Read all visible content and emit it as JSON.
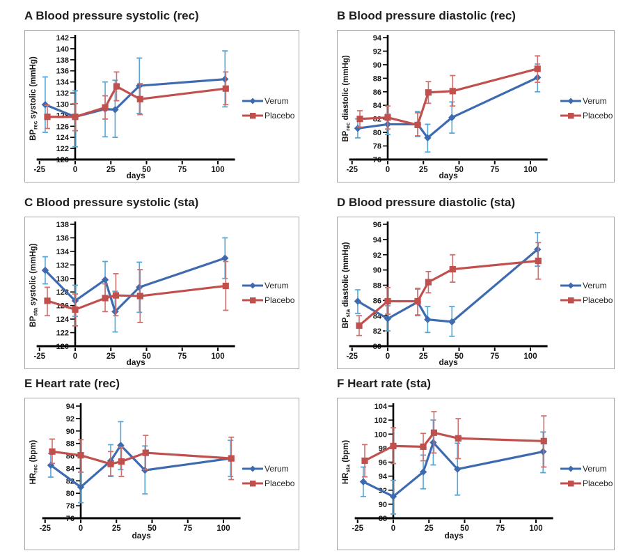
{
  "figure": {
    "legend_labels": [
      "Verum",
      "Placebo"
    ],
    "legend_position": "right"
  },
  "colors": {
    "verum_line": "#3e6bb0",
    "verum_err": "#56a7d8",
    "placebo_line": "#c0504d",
    "placebo_err": "#d0706c",
    "axis": "#000000",
    "text": "#171717",
    "legend_text": "#262626",
    "frame_border": "#a6a6a6"
  },
  "chart_data": [
    {
      "panel": "A",
      "type": "line",
      "title": "A Blood pressure systolic (rec)",
      "xlabel": "days",
      "ylabel": {
        "prefix": "BP",
        "sub": "rec",
        "suffix": " systolic (mmHg)"
      },
      "ylim": [
        120,
        142
      ],
      "ytick_step": 2,
      "xticks": [
        -25,
        0,
        25,
        50,
        75,
        100
      ],
      "grid": false,
      "series": [
        {
          "name": "Verum",
          "role": "verum",
          "marker": "diamond",
          "x": [
            -21,
            0,
            21,
            28,
            45,
            105
          ],
          "y": [
            129.9,
            127.7,
            129.1,
            129.0,
            133.3,
            134.5
          ],
          "err_lo": [
            124.9,
            122.3,
            124.1,
            124.0,
            128.3,
            129.5
          ],
          "err_hi": [
            134.9,
            132.4,
            134.0,
            134.3,
            138.3,
            139.6
          ]
        },
        {
          "name": "Placebo",
          "role": "placebo",
          "marker": "square",
          "x": [
            -19.5,
            0,
            21,
            29,
            45.5,
            105.5
          ],
          "y": [
            127.7,
            127.7,
            129.4,
            133.2,
            130.9,
            132.8
          ],
          "err_lo": [
            125.6,
            125.2,
            127.3,
            130.6,
            128.1,
            129.9
          ],
          "err_hi": [
            129.8,
            130.1,
            131.5,
            135.8,
            133.7,
            135.8
          ]
        }
      ]
    },
    {
      "panel": "B",
      "type": "line",
      "title": "B Blood pressure diastolic (rec)",
      "xlabel": "days",
      "ylabel": {
        "prefix": "BP",
        "sub": "rec",
        "suffix": " diastolic (mmHg)"
      },
      "ylim": [
        76,
        94
      ],
      "ytick_step": 2,
      "xticks": [
        -25,
        0,
        25,
        50,
        75,
        100
      ],
      "grid": false,
      "series": [
        {
          "name": "Verum",
          "role": "verum",
          "marker": "diamond",
          "x": [
            -21,
            0,
            21,
            28,
            45,
            105
          ],
          "y": [
            80.6,
            81.2,
            81.2,
            79.2,
            82.2,
            88.1
          ],
          "err_lo": [
            79.2,
            79.7,
            79.4,
            77.1,
            79.9,
            86.0
          ],
          "err_hi": [
            82.0,
            82.7,
            83.1,
            81.2,
            84.5,
            90.1
          ]
        },
        {
          "name": "Placebo",
          "role": "placebo",
          "marker": "square",
          "x": [
            -19.5,
            0,
            21,
            28.5,
            45.5,
            105
          ],
          "y": [
            82.0,
            82.2,
            81.1,
            85.9,
            86.1,
            89.4
          ],
          "err_lo": [
            80.8,
            80.5,
            79.5,
            84.3,
            83.9,
            87.4
          ],
          "err_hi": [
            83.2,
            83.9,
            82.9,
            87.5,
            88.4,
            91.3
          ]
        }
      ]
    },
    {
      "panel": "C",
      "type": "line",
      "title": "C Blood pressure systolic (sta)",
      "xlabel": "days",
      "ylabel": {
        "prefix": "BP",
        "sub": "sta",
        "suffix": " systolic (mmHg)"
      },
      "ylim": [
        120,
        138
      ],
      "ytick_step": 2,
      "xticks": [
        -25,
        0,
        25,
        50,
        75,
        100
      ],
      "grid": false,
      "series": [
        {
          "name": "Verum",
          "role": "verum",
          "marker": "diamond",
          "x": [
            -21,
            0,
            21,
            28,
            45,
            105
          ],
          "y": [
            131.2,
            126.7,
            129.8,
            125.1,
            128.7,
            133.0
          ],
          "err_lo": [
            129.2,
            124.4,
            127.2,
            122.1,
            125.0,
            130.0
          ],
          "err_hi": [
            133.2,
            129.0,
            132.5,
            128.1,
            132.4,
            136.0
          ]
        },
        {
          "name": "Placebo",
          "role": "placebo",
          "marker": "square",
          "x": [
            -19.5,
            0,
            21,
            28.5,
            45.5,
            105.5
          ],
          "y": [
            126.7,
            125.4,
            127.1,
            127.5,
            127.4,
            128.9
          ],
          "err_lo": [
            124.5,
            123.0,
            125.1,
            124.5,
            123.5,
            125.3
          ],
          "err_hi": [
            128.7,
            127.7,
            129.2,
            130.7,
            131.3,
            132.5
          ]
        }
      ]
    },
    {
      "panel": "D",
      "type": "line",
      "title": "D Blood pressure diastolic (sta)",
      "xlabel": "days",
      "ylabel": {
        "prefix": "BP",
        "sub": "sta",
        "suffix": " diastolic (mmHg)"
      },
      "ylim": [
        80,
        96
      ],
      "ytick_step": 2,
      "xticks": [
        -25,
        0,
        25,
        50,
        75,
        100
      ],
      "grid": false,
      "series": [
        {
          "name": "Verum",
          "role": "verum",
          "marker": "diamond",
          "x": [
            -21,
            0,
            21,
            28,
            45,
            105
          ],
          "y": [
            85.9,
            83.6,
            85.8,
            83.5,
            83.2,
            92.7
          ],
          "err_lo": [
            84.3,
            82.0,
            84.0,
            81.8,
            81.3,
            90.5
          ],
          "err_hi": [
            87.4,
            85.3,
            87.6,
            85.2,
            85.2,
            94.9
          ]
        },
        {
          "name": "Placebo",
          "role": "placebo",
          "marker": "square",
          "x": [
            -20,
            0,
            21,
            28.5,
            45.5,
            105.5
          ],
          "y": [
            82.7,
            85.9,
            85.9,
            88.4,
            90.1,
            91.2
          ],
          "err_lo": [
            81.4,
            84.2,
            84.1,
            87.0,
            88.4,
            88.8
          ],
          "err_hi": [
            84.0,
            87.7,
            87.5,
            89.8,
            92.0,
            93.6
          ]
        }
      ]
    },
    {
      "panel": "E",
      "type": "line",
      "title": "E Heart rate (rec)",
      "xlabel": "days",
      "ylabel": {
        "prefix": "HR",
        "sub": "rec",
        "suffix": " (bpm)"
      },
      "ylim": [
        76,
        94
      ],
      "ytick_step": 2,
      "xticks": [
        -25,
        0,
        25,
        50,
        75,
        100
      ],
      "grid": false,
      "series": [
        {
          "name": "Verum",
          "role": "verum",
          "marker": "diamond",
          "x": [
            -21,
            0,
            21,
            28,
            45,
            105
          ],
          "y": [
            84.5,
            81.0,
            85.2,
            87.7,
            83.7,
            85.6
          ],
          "err_lo": [
            82.6,
            78.5,
            82.7,
            83.8,
            79.9,
            82.7
          ],
          "err_hi": [
            86.4,
            83.4,
            87.8,
            91.5,
            87.6,
            88.5
          ]
        },
        {
          "name": "Placebo",
          "role": "placebo",
          "marker": "square",
          "x": [
            -20,
            0,
            21,
            28.5,
            45.5,
            105.5
          ],
          "y": [
            86.7,
            86.1,
            84.7,
            85.1,
            86.5,
            85.6
          ],
          "err_lo": [
            84.8,
            83.4,
            82.8,
            82.7,
            83.8,
            82.2
          ],
          "err_hi": [
            88.7,
            88.6,
            86.7,
            87.4,
            89.3,
            89.0
          ]
        }
      ]
    },
    {
      "panel": "F",
      "type": "line",
      "title": "F Heart rate (sta)",
      "xlabel": "days",
      "ylabel": {
        "prefix": "HR",
        "sub": "sta",
        "suffix": " (bpm)"
      },
      "ylim": [
        88,
        104
      ],
      "ytick_step": 2,
      "xticks": [
        -25,
        0,
        25,
        50,
        75,
        100
      ],
      "grid": false,
      "series": [
        {
          "name": "Verum",
          "role": "verum",
          "marker": "diamond",
          "x": [
            -21,
            0,
            21,
            28,
            45,
            105
          ],
          "y": [
            93.2,
            91.1,
            94.6,
            98.8,
            95.0,
            97.5
          ],
          "err_lo": [
            91.1,
            88.6,
            92.2,
            95.6,
            91.3,
            94.5
          ],
          "err_hi": [
            95.3,
            93.4,
            97.0,
            102.0,
            98.7,
            100.3
          ]
        },
        {
          "name": "Placebo",
          "role": "placebo",
          "marker": "square",
          "x": [
            -20,
            0,
            21,
            28.5,
            45.5,
            105.5
          ],
          "y": [
            96.2,
            98.3,
            98.2,
            100.2,
            99.4,
            99.0
          ],
          "err_lo": [
            93.9,
            95.8,
            96.2,
            97.3,
            96.5,
            95.3
          ],
          "err_hi": [
            98.5,
            100.9,
            100.1,
            103.2,
            102.2,
            102.6
          ]
        }
      ]
    }
  ]
}
